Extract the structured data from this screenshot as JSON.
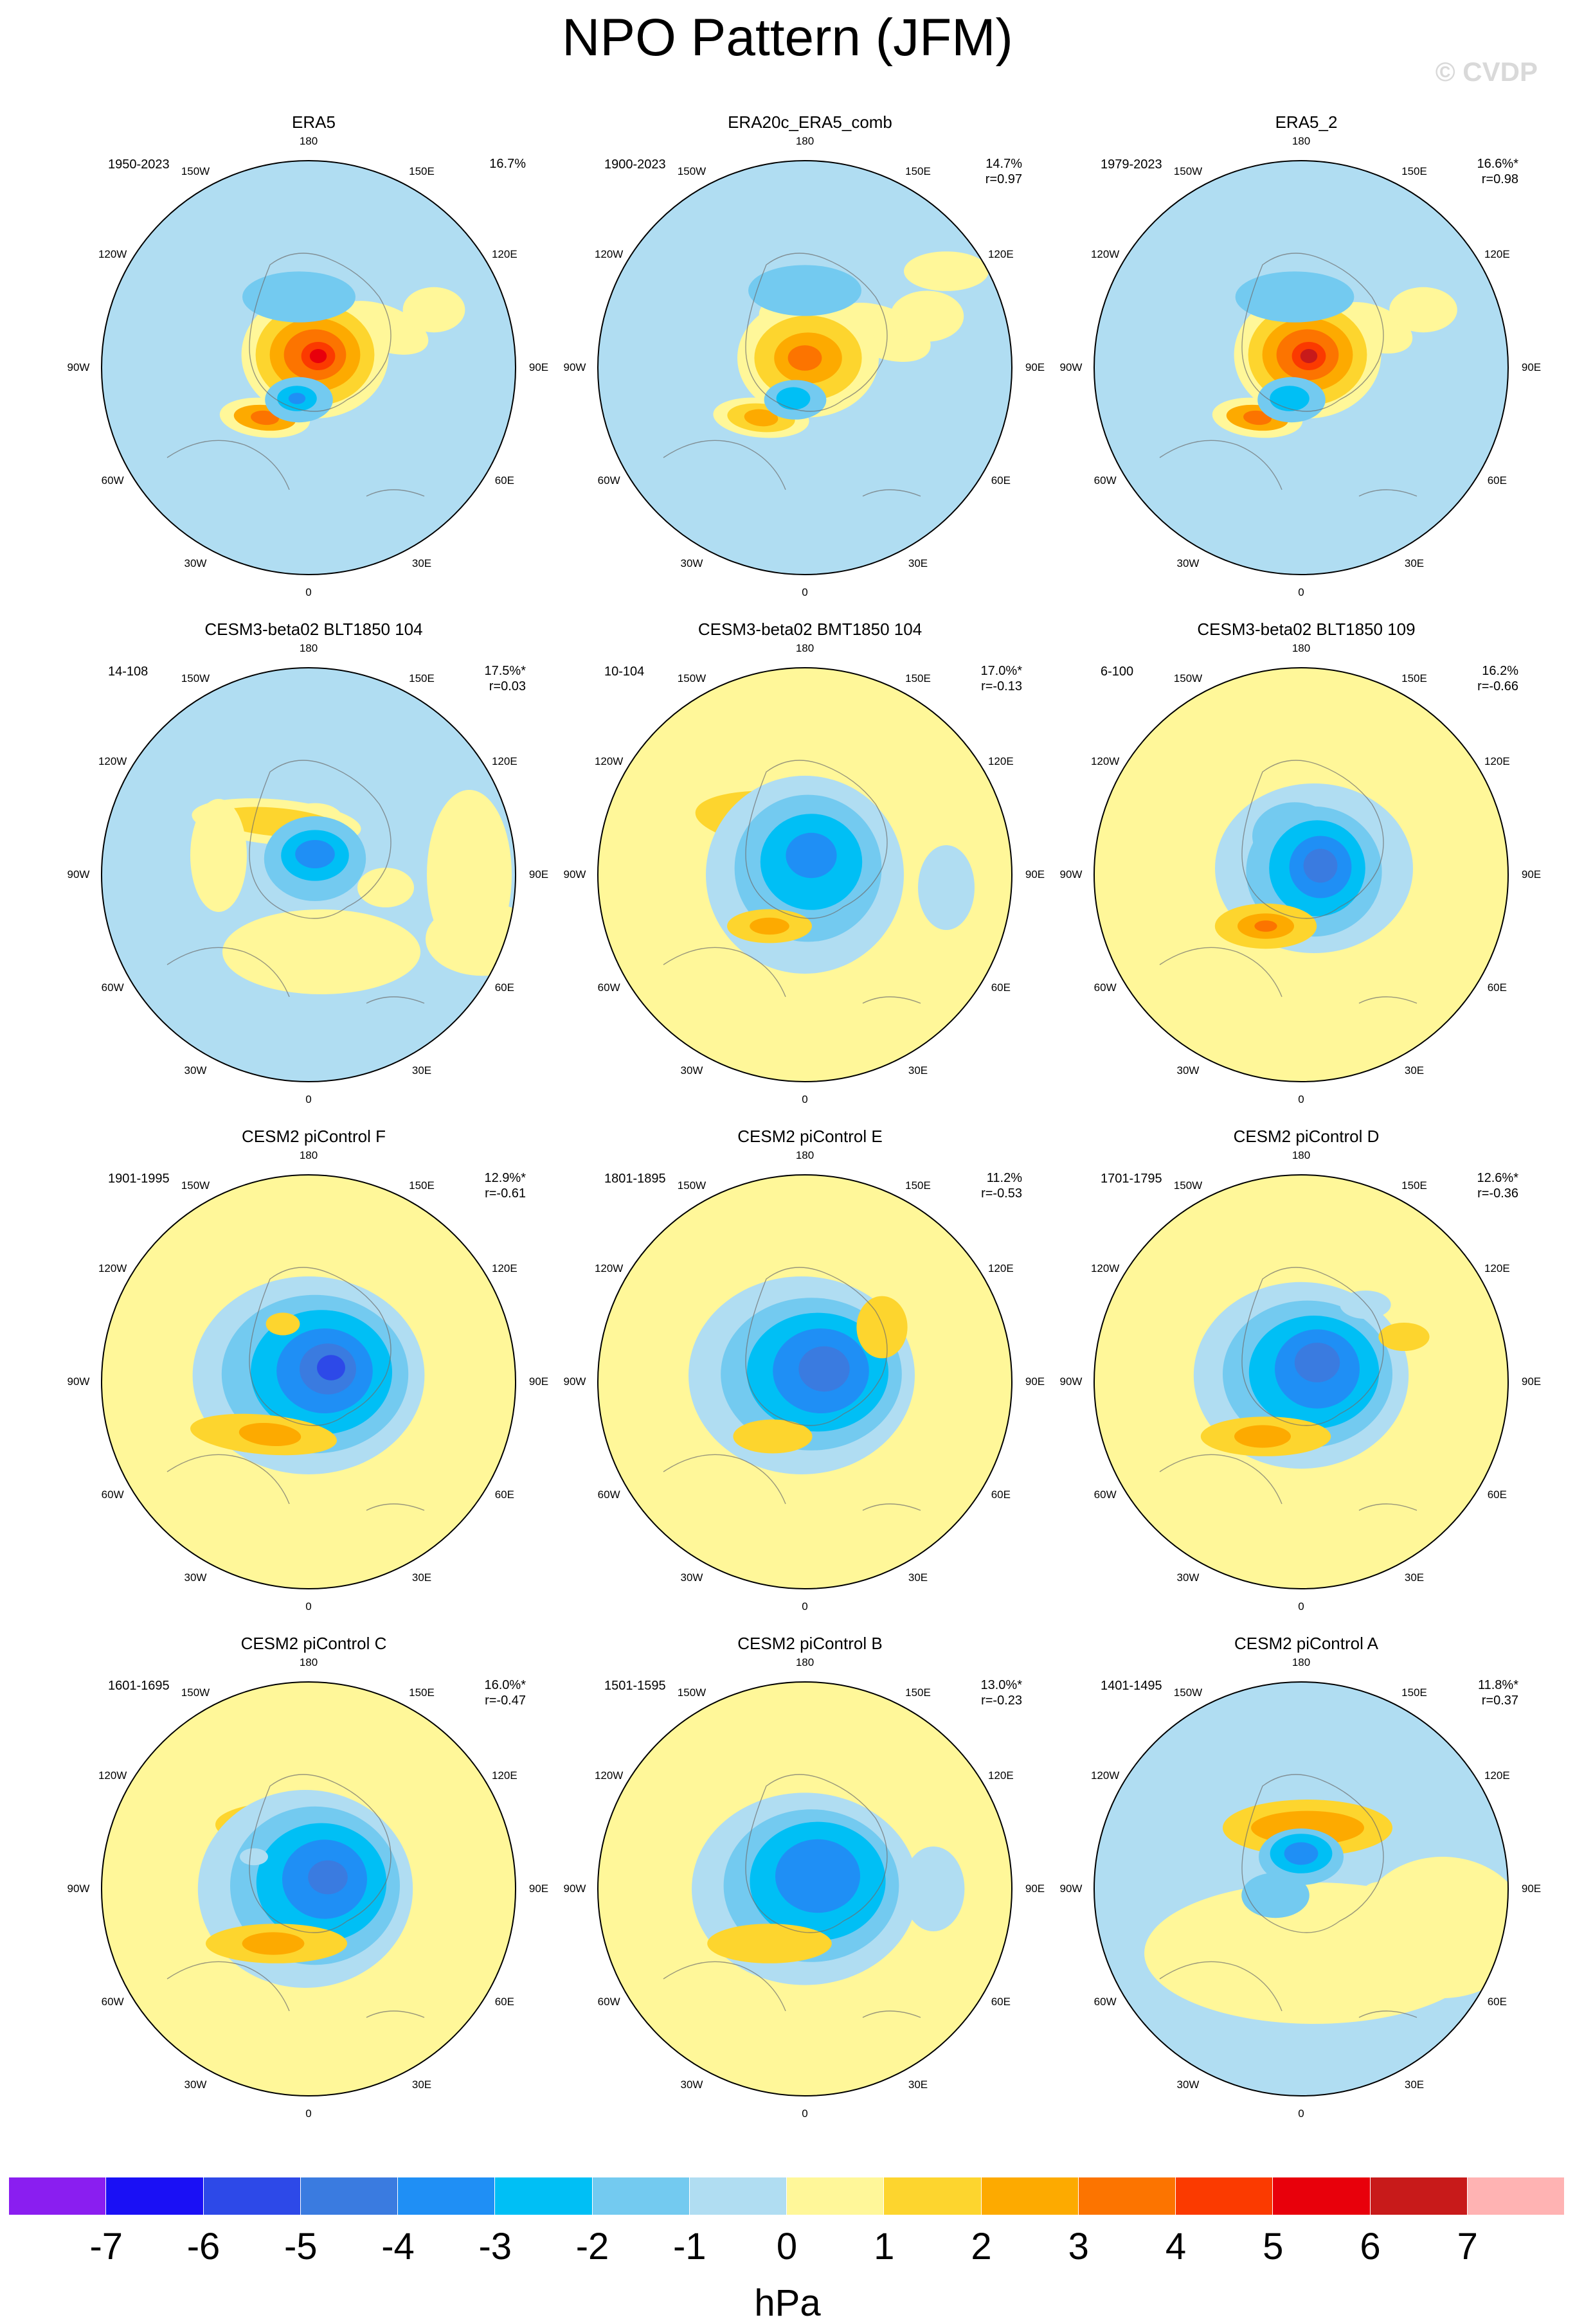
{
  "title": "NPO Pattern (JFM)",
  "watermark": "© CVDP",
  "units": "hPa",
  "colors": [
    "#8a1ef0",
    "#1a10f5",
    "#2d49e8",
    "#3a7be0",
    "#1f8ff5",
    "#00bff5",
    "#73caf0",
    "#b0ddf2",
    "#fff799",
    "#fdd52e",
    "#fdaa00",
    "#fc7400",
    "#fb3a00",
    "#e8000b",
    "#c81a1a",
    "#ffb3b3"
  ],
  "colorbar_ticks": [
    "-7",
    "-6",
    "-5",
    "-4",
    "-3",
    "-2",
    "-1",
    "0",
    "1",
    "2",
    "3",
    "4",
    "5",
    "6",
    "7"
  ],
  "lon_labels": [
    "180",
    "150E",
    "120E",
    "90E",
    "60E",
    "30E",
    "0",
    "30W",
    "60W",
    "90W",
    "120W",
    "150W"
  ],
  "panels": [
    {
      "title": "ERA5",
      "period": "1950-2023",
      "pct": "16.7%",
      "r": "",
      "base": "#b0ddf2",
      "blobs": [
        [
          -130,
          70,
          42,
          20,
          10,
          "#fff799"
        ],
        [
          -45,
          62,
          34,
          16,
          20,
          "#fff799"
        ],
        [
          -165,
          35,
          40,
          28,
          0,
          "#fff799"
        ],
        [
          35,
          90,
          22,
          16,
          0,
          "#fff799"
        ],
        [
          -150,
          20,
          52,
          45,
          0,
          "#fff799"
        ],
        [
          -150,
          20,
          42,
          36,
          0,
          "#fdd52e"
        ],
        [
          -150,
          20,
          32,
          26,
          0,
          "#fdaa00"
        ],
        [
          -150,
          20,
          22,
          18,
          0,
          "#fc7400"
        ],
        [
          -145,
          18,
          12,
          10,
          0,
          "#fb3a00"
        ],
        [
          -145,
          18,
          6,
          5,
          0,
          "#e8000b"
        ],
        [
          -228,
          -78,
          32,
          14,
          5,
          "#fff799"
        ],
        [
          -228,
          -78,
          22,
          9,
          5,
          "#fdaa00"
        ],
        [
          -228,
          -78,
          10,
          5,
          5,
          "#fc7400"
        ],
        [
          -175,
          -50,
          24,
          16,
          0,
          "#73caf0"
        ],
        [
          -178,
          -48,
          14,
          9,
          0,
          "#00bff5"
        ],
        [
          -178,
          -48,
          6,
          4,
          0,
          "#1f8ff5"
        ],
        [
          -175,
          110,
          40,
          18,
          0,
          "#73caf0"
        ]
      ]
    },
    {
      "title": "ERA20c_ERA5_comb",
      "period": "1900-2023",
      "pct": "14.7%",
      "r": "r=0.97",
      "base": "#b0ddf2",
      "blobs": [
        [
          -140,
          70,
          42,
          20,
          10,
          "#fff799"
        ],
        [
          -40,
          55,
          36,
          18,
          20,
          "#fff799"
        ],
        [
          -160,
          35,
          38,
          26,
          0,
          "#fff799"
        ],
        [
          30,
          80,
          26,
          18,
          0,
          "#fff799"
        ],
        [
          60,
          150,
          30,
          14,
          0,
          "#fff799"
        ],
        [
          -155,
          15,
          50,
          42,
          0,
          "#fff799"
        ],
        [
          -155,
          15,
          38,
          30,
          0,
          "#fdd52e"
        ],
        [
          -155,
          15,
          24,
          18,
          0,
          "#fdaa00"
        ],
        [
          -160,
          15,
          12,
          9,
          0,
          "#fc7400"
        ],
        [
          -228,
          -78,
          34,
          14,
          5,
          "#fff799"
        ],
        [
          -228,
          -78,
          24,
          10,
          5,
          "#fdd52e"
        ],
        [
          -228,
          -78,
          12,
          6,
          5,
          "#fdaa00"
        ],
        [
          -175,
          -50,
          22,
          14,
          0,
          "#73caf0"
        ],
        [
          -178,
          -48,
          12,
          8,
          0,
          "#00bff5"
        ],
        [
          -160,
          120,
          40,
          18,
          0,
          "#73caf0"
        ]
      ]
    },
    {
      "title": "ERA5_2",
      "period": "1979-2023",
      "pct": "16.6%*",
      "r": "r=0.98",
      "base": "#b0ddf2",
      "blobs": [
        [
          -120,
          70,
          40,
          18,
          10,
          "#fff799"
        ],
        [
          -50,
          62,
          30,
          16,
          20,
          "#fff799"
        ],
        [
          -165,
          35,
          40,
          28,
          0,
          "#fff799"
        ],
        [
          30,
          90,
          24,
          16,
          0,
          "#fff799"
        ],
        [
          -150,
          20,
          52,
          45,
          0,
          "#fff799"
        ],
        [
          -150,
          20,
          42,
          36,
          0,
          "#fdd52e"
        ],
        [
          -150,
          20,
          32,
          26,
          0,
          "#fdaa00"
        ],
        [
          -150,
          20,
          22,
          18,
          0,
          "#fc7400"
        ],
        [
          -148,
          18,
          12,
          10,
          0,
          "#fb3a00"
        ],
        [
          -148,
          18,
          6,
          5,
          0,
          "#c81a1a"
        ],
        [
          -228,
          -78,
          32,
          14,
          5,
          "#fff799"
        ],
        [
          -228,
          -78,
          22,
          9,
          5,
          "#fdaa00"
        ],
        [
          -228,
          -78,
          10,
          5,
          5,
          "#fc7400"
        ],
        [
          -175,
          -50,
          24,
          16,
          0,
          "#73caf0"
        ],
        [
          -178,
          -48,
          14,
          9,
          0,
          "#00bff5"
        ],
        [
          -170,
          110,
          42,
          18,
          0,
          "#73caf0"
        ]
      ]
    },
    {
      "title": "CESM3-beta02 BLT1850 104",
      "period": "14-108",
      "pct": "17.5%*",
      "r": "r=0.03",
      "base": "#b0ddf2",
      "blobs": [
        [
          -150,
          85,
          20,
          12,
          0,
          "#fff799"
        ],
        [
          -210,
          82,
          60,
          16,
          5,
          "#fff799"
        ],
        [
          -210,
          82,
          44,
          10,
          5,
          "#fdd52e"
        ],
        [
          90,
          0,
          30,
          60,
          0,
          "#fff799"
        ],
        [
          -140,
          -120,
          70,
          30,
          0,
          "#fff799"
        ],
        [
          110,
          -100,
          40,
          26,
          0,
          "#fff799"
        ],
        [
          -300,
          30,
          20,
          40,
          0,
          "#fff799"
        ],
        [
          -150,
          25,
          36,
          30,
          0,
          "#73caf0"
        ],
        [
          -150,
          30,
          24,
          18,
          0,
          "#00bff5"
        ],
        [
          -150,
          32,
          14,
          10,
          0,
          "#1f8ff5"
        ],
        [
          -40,
          -20,
          20,
          14,
          0,
          "#fff799"
        ]
      ]
    },
    {
      "title": "CESM3-beta02 BMT1850 104",
      "period": "10-104",
      "pct": "17.0%*",
      "r": "r=-0.13",
      "base": "#fff799",
      "blobs": [
        [
          -190,
          85,
          64,
          20,
          5,
          "#fdd52e"
        ],
        [
          -160,
          0,
          70,
          70,
          0,
          "#b0ddf2"
        ],
        [
          -155,
          10,
          52,
          52,
          0,
          "#73caf0"
        ],
        [
          -150,
          20,
          36,
          34,
          0,
          "#00bff5"
        ],
        [
          -150,
          30,
          18,
          16,
          0,
          "#1f8ff5"
        ],
        [
          -215,
          -80,
          30,
          12,
          0,
          "#fdd52e"
        ],
        [
          -215,
          -80,
          14,
          6,
          0,
          "#fdaa00"
        ],
        [
          60,
          -20,
          20,
          30,
          0,
          "#b0ddf2"
        ]
      ]
    },
    {
      "title": "CESM3-beta02 BLT1850 109",
      "period": "6-100",
      "pct": "16.2%",
      "r": "r=-0.66",
      "base": "#fff799",
      "blobs": [
        [
          -140,
          10,
          70,
          60,
          0,
          "#b0ddf2"
        ],
        [
          -170,
          60,
          30,
          24,
          0,
          "#73caf0"
        ],
        [
          -140,
          5,
          48,
          46,
          0,
          "#73caf0"
        ],
        [
          -135,
          10,
          34,
          34,
          0,
          "#00bff5"
        ],
        [
          -130,
          12,
          22,
          22,
          0,
          "#1f8ff5"
        ],
        [
          -130,
          14,
          12,
          12,
          0,
          "#3a7be0"
        ],
        [
          -215,
          -80,
          36,
          16,
          0,
          "#fdd52e"
        ],
        [
          -215,
          -80,
          20,
          9,
          0,
          "#fdaa00"
        ],
        [
          -215,
          -80,
          8,
          4,
          0,
          "#fc7400"
        ]
      ]
    },
    {
      "title": "CESM2 piControl F",
      "period": "1901-1995",
      "pct": "12.9%*",
      "r": "r=-0.61",
      "base": "#fff799",
      "blobs": [
        [
          -160,
          10,
          82,
          70,
          0,
          "#b0ddf2"
        ],
        [
          -150,
          12,
          66,
          56,
          0,
          "#73caf0"
        ],
        [
          -140,
          15,
          50,
          44,
          0,
          "#00bff5"
        ],
        [
          -135,
          17,
          34,
          30,
          0,
          "#1f8ff5"
        ],
        [
          -130,
          20,
          20,
          18,
          0,
          "#3a7be0"
        ],
        [
          -125,
          22,
          10,
          9,
          0,
          "#2d49e8"
        ],
        [
          -230,
          -82,
          52,
          14,
          5,
          "#fdd52e"
        ],
        [
          -220,
          -82,
          22,
          8,
          5,
          "#fdaa00"
        ],
        [
          -200,
          90,
          12,
          8,
          0,
          "#fdd52e"
        ]
      ]
    },
    {
      "title": "CESM2 piControl E",
      "period": "1801-1895",
      "pct": "11.2%",
      "r": "r=-0.53",
      "base": "#fff799",
      "blobs": [
        [
          -165,
          10,
          80,
          70,
          0,
          "#b0ddf2"
        ],
        [
          -150,
          12,
          64,
          54,
          0,
          "#73caf0"
        ],
        [
          -140,
          15,
          50,
          42,
          0,
          "#00bff5"
        ],
        [
          -135,
          17,
          34,
          30,
          0,
          "#1f8ff5"
        ],
        [
          -130,
          20,
          18,
          16,
          0,
          "#3a7be0"
        ],
        [
          -210,
          -85,
          28,
          12,
          0,
          "#fdd52e"
        ],
        [
          -40,
          85,
          18,
          22,
          0,
          "#fdd52e"
        ]
      ]
    },
    {
      "title": "CESM2 piControl D",
      "period": "1701-1795",
      "pct": "12.6%*",
      "r": "r=-0.36",
      "base": "#fff799",
      "blobs": [
        [
          -160,
          10,
          76,
          66,
          0,
          "#b0ddf2"
        ],
        [
          -150,
          12,
          60,
          52,
          0,
          "#73caf0"
        ],
        [
          -140,
          15,
          46,
          40,
          0,
          "#00bff5"
        ],
        [
          -135,
          20,
          30,
          28,
          0,
          "#1f8ff5"
        ],
        [
          -135,
          30,
          16,
          14,
          0,
          "#3a7be0"
        ],
        [
          -215,
          -85,
          46,
          14,
          0,
          "#fdd52e"
        ],
        [
          -220,
          -85,
          20,
          8,
          0,
          "#fdaa00"
        ],
        [
          0,
          70,
          18,
          10,
          0,
          "#fdd52e"
        ],
        [
          -60,
          120,
          18,
          10,
          0,
          "#b0ddf2"
        ]
      ]
    },
    {
      "title": "CESM2 piControl C",
      "period": "1601-1695",
      "pct": "16.0%*",
      "r": "r=-0.47",
      "base": "#fff799",
      "blobs": [
        [
          -195,
          100,
          50,
          16,
          0,
          "#fdd52e"
        ],
        [
          -140,
          60,
          18,
          10,
          -30,
          "#fdd52e"
        ],
        [
          -165,
          0,
          76,
          70,
          0,
          "#b0ddf2"
        ],
        [
          -150,
          5,
          60,
          56,
          0,
          "#73caf0"
        ],
        [
          -140,
          10,
          46,
          42,
          0,
          "#00bff5"
        ],
        [
          -135,
          15,
          30,
          28,
          0,
          "#1f8ff5"
        ],
        [
          -130,
          18,
          14,
          12,
          0,
          "#3a7be0"
        ],
        [
          -210,
          -85,
          50,
          14,
          0,
          "#fdd52e"
        ],
        [
          -215,
          -85,
          22,
          8,
          0,
          "#fdaa00"
        ],
        [
          -245,
          50,
          10,
          6,
          0,
          "#b0ddf2"
        ]
      ]
    },
    {
      "title": "CESM2 piControl B",
      "period": "1501-1595",
      "pct": "13.0%*",
      "r": "r=-0.23",
      "base": "#fff799",
      "blobs": [
        [
          -170,
          100,
          40,
          16,
          0,
          "#fdd52e"
        ],
        [
          -120,
          100,
          20,
          12,
          0,
          "#fdd52e"
        ],
        [
          -160,
          0,
          80,
          68,
          0,
          "#b0ddf2"
        ],
        [
          -150,
          5,
          62,
          54,
          0,
          "#73caf0"
        ],
        [
          -140,
          12,
          48,
          42,
          0,
          "#00bff5"
        ],
        [
          -140,
          20,
          30,
          26,
          0,
          "#1f8ff5"
        ],
        [
          -215,
          -85,
          44,
          14,
          0,
          "#fdd52e"
        ],
        [
          40,
          0,
          22,
          30,
          0,
          "#b0ddf2"
        ]
      ]
    },
    {
      "title": "CESM2 piControl A",
      "period": "1401-1495",
      "pct": "11.8%*",
      "r": "r=0.37",
      "base": "#b0ddf2",
      "blobs": [
        [
          -150,
          95,
          60,
          20,
          0,
          "#fdd52e"
        ],
        [
          -150,
          95,
          40,
          12,
          0,
          "#fdaa00"
        ],
        [
          -140,
          95,
          18,
          7,
          0,
          "#fdaa00"
        ],
        [
          -140,
          -100,
          120,
          50,
          0,
          "#fff799"
        ],
        [
          60,
          -60,
          60,
          50,
          0,
          "#fff799"
        ],
        [
          -40,
          -20,
          14,
          14,
          0,
          "#fff799"
        ],
        [
          -160,
          50,
          30,
          20,
          0,
          "#73caf0"
        ],
        [
          -160,
          55,
          22,
          14,
          0,
          "#00bff5"
        ],
        [
          -160,
          55,
          12,
          8,
          0,
          "#1f8ff5"
        ],
        [
          -200,
          -10,
          24,
          16,
          0,
          "#73caf0"
        ]
      ]
    }
  ]
}
